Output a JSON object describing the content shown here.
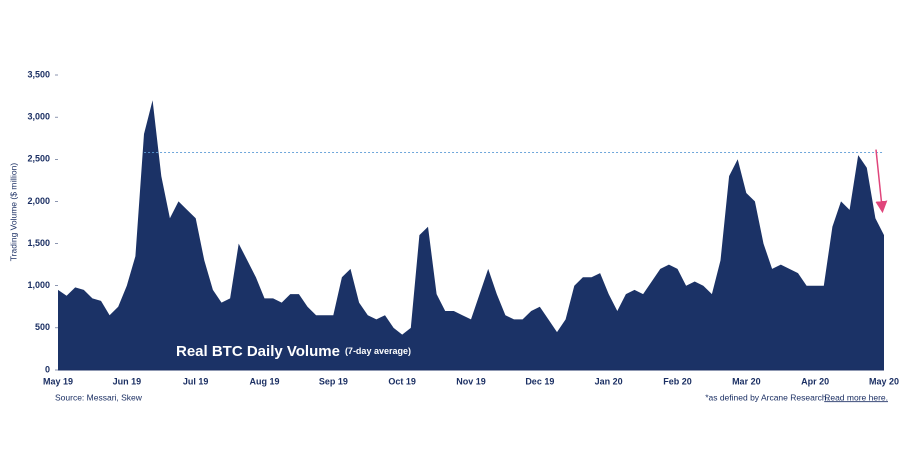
{
  "chart_data": {
    "type": "area",
    "title": "Real BTC Daily Volume",
    "subtitle": "(7-day average)",
    "y_label": "Trading Volume ($ million)",
    "source": "Source: Messari, Skew",
    "footnote": "*as defined by Arcane Research.",
    "footnote_link": "Read more here.",
    "color": "#1b3266",
    "reference_value": 2580,
    "reference_color": "#5b9bd5",
    "arrow_color": "#e0457b",
    "categories": [
      "May 19",
      null,
      null,
      null,
      null,
      null,
      null,
      null,
      "Jun 19",
      null,
      null,
      null,
      null,
      null,
      null,
      null,
      "Jul 19",
      null,
      null,
      null,
      null,
      null,
      null,
      null,
      "Aug 19",
      null,
      null,
      null,
      null,
      null,
      null,
      null,
      "Sep 19",
      null,
      null,
      null,
      null,
      null,
      null,
      null,
      "Oct 19",
      null,
      null,
      null,
      null,
      null,
      null,
      null,
      "Nov 19",
      null,
      null,
      null,
      null,
      null,
      null,
      null,
      "Dec 19",
      null,
      null,
      null,
      null,
      null,
      null,
      null,
      "Jan 20",
      null,
      null,
      null,
      null,
      null,
      null,
      null,
      "Feb 20",
      null,
      null,
      null,
      null,
      null,
      null,
      null,
      "Mar 20",
      null,
      null,
      null,
      null,
      null,
      null,
      null,
      "Apr 20",
      null,
      null,
      null,
      null,
      null,
      null,
      null,
      "May 20"
    ],
    "values": [
      950,
      880,
      980,
      950,
      850,
      820,
      650,
      750,
      1000,
      1350,
      2800,
      3200,
      2300,
      1800,
      2000,
      1900,
      1800,
      1300,
      950,
      800,
      850,
      1500,
      1300,
      1100,
      850,
      850,
      800,
      900,
      900,
      750,
      650,
      650,
      650,
      1100,
      1200,
      800,
      650,
      600,
      650,
      500,
      420,
      500,
      1600,
      1700,
      900,
      700,
      700,
      650,
      600,
      900,
      1200,
      900,
      650,
      600,
      600,
      700,
      750,
      600,
      450,
      600,
      1000,
      1100,
      1100,
      1150,
      900,
      700,
      900,
      950,
      900,
      1050,
      1200,
      1250,
      1200,
      1000,
      1050,
      1000,
      900,
      1300,
      2300,
      2500,
      2100,
      2000,
      1500,
      1200,
      1250,
      1200,
      1150,
      1000,
      1000,
      1000,
      1700,
      2000,
      1900,
      2550,
      2400,
      1800,
      1600
    ],
    "ylim": [
      0,
      3500
    ],
    "yticks": [
      0,
      500,
      {
        "value": 1000,
        "label": "1,000"
      },
      {
        "value": 1500,
        "label": "1,500"
      },
      {
        "value": 2000,
        "label": "2,000"
      },
      {
        "value": 2500,
        "label": "2,500"
      },
      {
        "value": 3000,
        "label": "3,000"
      },
      {
        "value": 3500,
        "label": "3,500"
      }
    ]
  }
}
